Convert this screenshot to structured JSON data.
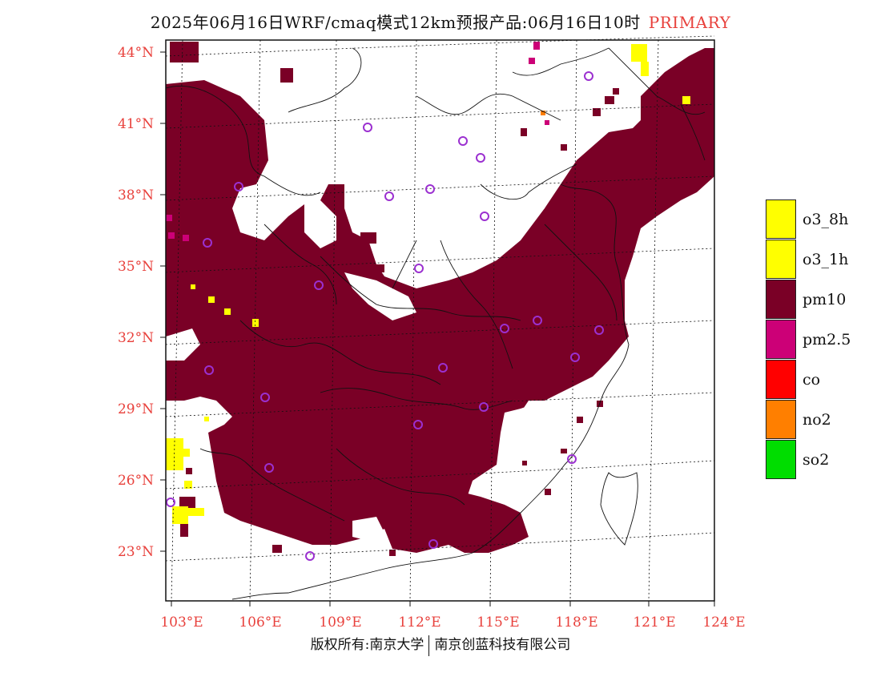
{
  "title": {
    "main": "2025年06月16日WRF/cmaq模式12km预报产品:06月16日10时",
    "tag": "PRIMARY"
  },
  "axes": {
    "lat_labels": [
      "44°N",
      "41°N",
      "38°N",
      "35°N",
      "32°N",
      "29°N",
      "26°N",
      "23°N"
    ],
    "lon_labels": [
      "103°E",
      "106°E",
      "109°E",
      "112°E",
      "115°E",
      "118°E",
      "121°E",
      "124°E"
    ]
  },
  "legend": {
    "items": [
      {
        "label": "o3_8h",
        "color": "#ffff00"
      },
      {
        "label": "o3_1h",
        "color": "#ffff00"
      },
      {
        "label": "pm10",
        "color": "#7a0026"
      },
      {
        "label": "pm2.5",
        "color": "#cc0077"
      },
      {
        "label": "co",
        "color": "#ff0000"
      },
      {
        "label": "no2",
        "color": "#ff7f00"
      },
      {
        "label": "so2",
        "color": "#00dd00"
      }
    ]
  },
  "colors": {
    "pm10": "#7a0026",
    "pm25": "#cc0077",
    "o3": "#ffff00",
    "station": "#9b30d0",
    "label_red": "#e8413c"
  },
  "copyright": {
    "left": "版权所有:南京大学",
    "right": "南京创蓝科技有限公司"
  }
}
